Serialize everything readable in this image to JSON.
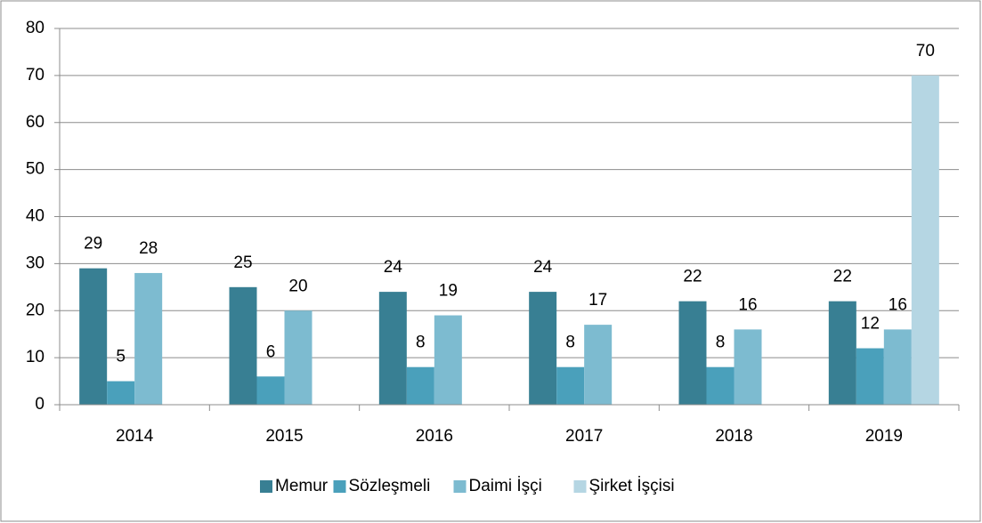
{
  "chart_data": {
    "type": "bar",
    "categories": [
      "2014",
      "2015",
      "2016",
      "2017",
      "2018",
      "2019"
    ],
    "series": [
      {
        "name": "Memur",
        "color": "#387f93",
        "values": [
          29,
          25,
          24,
          24,
          22,
          22
        ]
      },
      {
        "name": "Sözleşmeli",
        "color": "#4aa0bb",
        "values": [
          5,
          6,
          8,
          8,
          8,
          12
        ]
      },
      {
        "name": "Daimi İşçi",
        "color": "#7dbbd0",
        "values": [
          28,
          20,
          19,
          17,
          16,
          16
        ]
      },
      {
        "name": "Şirket İşçisi",
        "color": "#b5d6e3",
        "values": [
          null,
          null,
          null,
          null,
          null,
          70
        ]
      }
    ],
    "ylim": [
      0,
      80
    ],
    "yticks": [
      0,
      10,
      20,
      30,
      40,
      50,
      60,
      70,
      80
    ],
    "grid": true,
    "legend": "bottom"
  }
}
